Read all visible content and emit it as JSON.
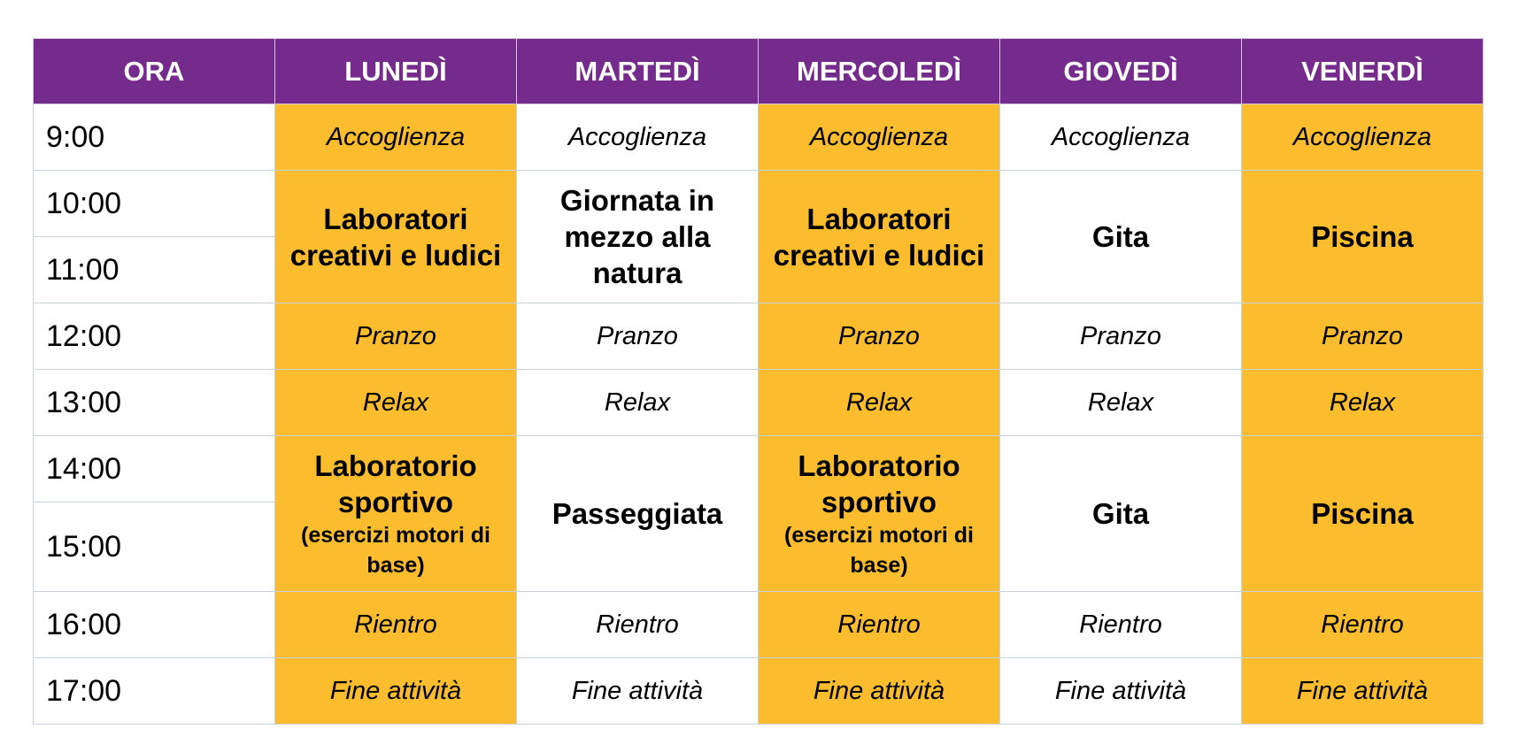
{
  "header": {
    "ora": "ORA",
    "days": [
      "LUNEDÌ",
      "MARTEDÌ",
      "MERCOLEDÌ",
      "GIOVEDÌ",
      "VENERDÌ"
    ]
  },
  "times": [
    "9:00",
    "10:00",
    "11:00",
    "12:00",
    "13:00",
    "14:00",
    "15:00",
    "16:00",
    "17:00"
  ],
  "activities": {
    "accoglienza": "Accoglienza",
    "pranzo": "Pranzo",
    "relax": "Relax",
    "rientro": "Rientro",
    "fine": "Fine attività"
  },
  "morning": {
    "mon": "Laboratori creativi e ludici",
    "tue": "Giornata in mezzo alla natura",
    "wed": "Laboratori creativi e ludici",
    "thu": "Gita",
    "fri": "Piscina"
  },
  "afternoon": {
    "mon_main": "Laboratorio sportivo",
    "mon_sub": "(esercizi motori di base)",
    "tue": "Passeggiata",
    "wed_main": "Laboratorio sportivo",
    "wed_sub": "(esercizi motori di base)",
    "thu": "Gita",
    "fri": "Piscina"
  },
  "colors": {
    "header_bg": "#752b8b",
    "highlight": "#fbbd2e",
    "plain": "#ffffff",
    "border": "#c7d3df"
  }
}
